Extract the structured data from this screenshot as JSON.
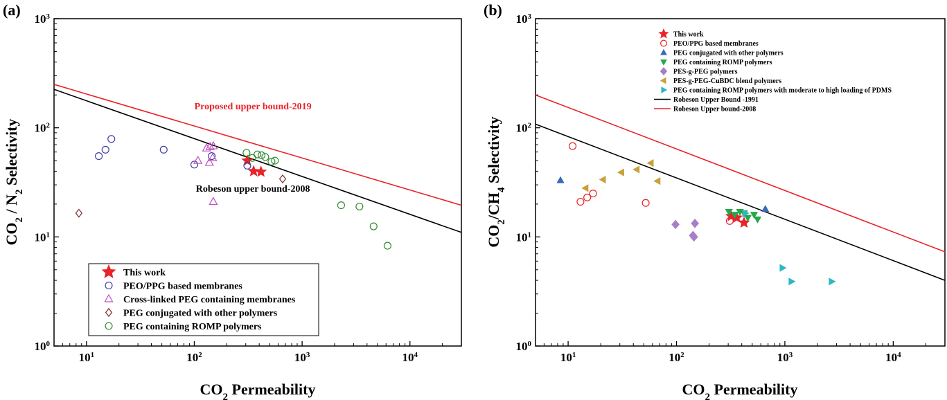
{
  "chart_data": [
    {
      "type": "scatter",
      "panel_label": "(a)",
      "xlabel": "CO2 Permeability",
      "ylabel": "CO2 / N2 Selectivity",
      "xscale": "log",
      "yscale": "log",
      "xlim": [
        5,
        30000
      ],
      "ylim": [
        1,
        1000
      ],
      "x_ticks": [
        {
          "value": 10,
          "base": "10",
          "exp": "1"
        },
        {
          "value": 100,
          "base": "10",
          "exp": "2"
        },
        {
          "value": 1000,
          "base": "10",
          "exp": "3"
        },
        {
          "value": 10000,
          "base": "10",
          "exp": "4"
        }
      ],
      "y_ticks": [
        {
          "value": 1,
          "base": "10",
          "exp": "0"
        },
        {
          "value": 10,
          "base": "10",
          "exp": "1"
        },
        {
          "value": 100,
          "base": "10",
          "exp": "2"
        },
        {
          "value": 1000,
          "base": "10",
          "exp": "3"
        }
      ],
      "legend_position": "bottom-left",
      "lines": [
        {
          "name": "Proposed upper bound-2019",
          "color": "#e8232a",
          "x": [
            5,
            30000
          ],
          "y": [
            250,
            19.5
          ]
        },
        {
          "name": "Robeson upper bound-2008",
          "color": "#000000",
          "x": [
            5,
            30000
          ],
          "y": [
            225,
            11
          ]
        }
      ],
      "annotations": [
        {
          "text": "Proposed upper bound-2019",
          "color": "#e8232a",
          "x": 350,
          "y": 148
        },
        {
          "text": "Robeson upper bound-2008",
          "color": "#000000",
          "x": 350,
          "y": 26
        }
      ],
      "series": [
        {
          "name": "This work",
          "marker": "star",
          "color": "#e8232a",
          "points": [
            [
              310,
              50
            ],
            [
              355,
              40
            ],
            [
              415,
              39.5
            ]
          ]
        },
        {
          "name": "PEO/PPG based membranes",
          "marker": "circle",
          "color": "#3f3fa8",
          "points": [
            [
              13,
              55
            ],
            [
              15,
              63
            ],
            [
              17,
              79
            ],
            [
              52,
              63
            ],
            [
              100,
              46
            ],
            [
              145,
              55
            ],
            [
              310,
              45
            ]
          ]
        },
        {
          "name": "Cross-linked PEG containing membranes",
          "marker": "triangle",
          "color": "#c050c0",
          "points": [
            [
              108,
              50
            ],
            [
              130,
              65
            ],
            [
              140,
              67
            ],
            [
              150,
              68
            ],
            [
              138,
              48
            ],
            [
              148,
              53
            ],
            [
              150,
              21
            ]
          ]
        },
        {
          "name": "PEG conjugated with other polymers",
          "marker": "diamond",
          "color": "#7a2a2a",
          "points": [
            [
              8.5,
              16.5
            ],
            [
              660,
              34
            ]
          ]
        },
        {
          "name": "PEG containing ROMP polymers",
          "marker": "circle",
          "color": "#2e8b2e",
          "points": [
            [
              305,
              59
            ],
            [
              345,
              53
            ],
            [
              385,
              57
            ],
            [
              420,
              56
            ],
            [
              455,
              54
            ],
            [
              520,
              49
            ],
            [
              560,
              50
            ],
            [
              2300,
              19.5
            ],
            [
              3400,
              19
            ],
            [
              4600,
              12.5
            ],
            [
              6200,
              8.3
            ]
          ]
        }
      ]
    },
    {
      "type": "scatter",
      "panel_label": "(b)",
      "xlabel": "CO2 Permeability",
      "ylabel": "CO2/CH4 Selectivity",
      "xscale": "log",
      "yscale": "log",
      "xlim": [
        5,
        30000
      ],
      "ylim": [
        1,
        1000
      ],
      "x_ticks": [
        {
          "value": 10,
          "base": "10",
          "exp": "1"
        },
        {
          "value": 100,
          "base": "10",
          "exp": "2"
        },
        {
          "value": 1000,
          "base": "10",
          "exp": "3"
        },
        {
          "value": 10000,
          "base": "10",
          "exp": "4"
        }
      ],
      "y_ticks": [
        {
          "value": 1,
          "base": "10",
          "exp": "0"
        },
        {
          "value": 10,
          "base": "10",
          "exp": "1"
        },
        {
          "value": 100,
          "base": "10",
          "exp": "2"
        },
        {
          "value": 1000,
          "base": "10",
          "exp": "3"
        }
      ],
      "legend_position": "top",
      "lines": [
        {
          "name": "Robeson Upper Bound -1991",
          "color": "#000000",
          "x": [
            5,
            30000
          ],
          "y": [
            108,
            4
          ]
        },
        {
          "name": "Robeson Upper bound-2008",
          "color": "#e8232a",
          "x": [
            5,
            30000
          ],
          "y": [
            200,
            7.3
          ]
        }
      ],
      "series": [
        {
          "name": "This work",
          "marker": "star",
          "color": "#e8232a",
          "points": [
            [
              320,
              15.5
            ],
            [
              360,
              15
            ],
            [
              420,
              13.5
            ]
          ]
        },
        {
          "name": "PEO/PPG based membranes",
          "marker": "circle-open",
          "color": "#e8232a",
          "points": [
            [
              11,
              68
            ],
            [
              13,
              21
            ],
            [
              15,
              23
            ],
            [
              17,
              25
            ],
            [
              52,
              20.5
            ],
            [
              310,
              14
            ]
          ]
        },
        {
          "name": "PEG conjugated with other polymers",
          "marker": "triangle-up",
          "color": "#3a6ab5",
          "points": [
            [
              8.5,
              33
            ],
            [
              660,
              18
            ]
          ]
        },
        {
          "name": "PEG containing ROMP polymers",
          "marker": "triangle-down",
          "color": "#22a84a",
          "points": [
            [
              305,
              17
            ],
            [
              345,
              16
            ],
            [
              385,
              17
            ],
            [
              420,
              16.5
            ],
            [
              455,
              15
            ],
            [
              520,
              16
            ],
            [
              560,
              14.5
            ]
          ]
        },
        {
          "name": "PES-g-PEG polymers",
          "marker": "diamond-filled",
          "color": "#a77fc8",
          "points": [
            [
              98,
              13
            ],
            [
              142,
              10.3
            ],
            [
              145,
              10
            ],
            [
              148,
              13.3
            ]
          ]
        },
        {
          "name": "PES-g-PEG-CuBDC blend polymers",
          "marker": "triangle-left",
          "color": "#c9a13a",
          "points": [
            [
              14.5,
              28
            ],
            [
              21,
              33.5
            ],
            [
              31,
              39
            ],
            [
              43,
              41.5
            ],
            [
              58,
              47.5
            ],
            [
              67,
              32.5
            ]
          ]
        },
        {
          "name": "PEG containing ROMP polymers with moderate to high loading of PDMS",
          "marker": "triangle-right",
          "color": "#2cb8c3",
          "points": [
            [
              430,
              16.5
            ],
            [
              950,
              5.2
            ],
            [
              1150,
              3.9
            ],
            [
              2700,
              3.9
            ]
          ]
        }
      ],
      "legend_lines": [
        "Robeson Upper Bound -1991",
        "Robeson Upper bound-2008"
      ]
    }
  ]
}
